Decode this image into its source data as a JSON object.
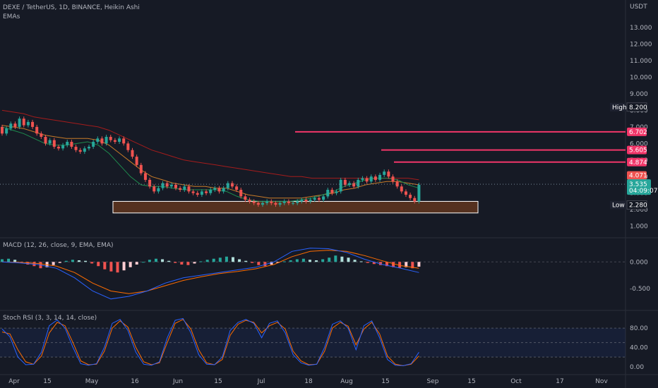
{
  "header": {
    "symbol_line": "DEXE / TetherUS, 1D, BINANCE, Heikin Ashi",
    "indicator": "EMAs"
  },
  "panels": {
    "macd_title": "MACD (12, 26, close, 9, EMA, EMA)",
    "stoch_title": "Stoch RSI (3, 3, 14, 14, close)"
  },
  "colors": {
    "up": "#26a69a",
    "down": "#ef5350",
    "hline": "#f23669",
    "ema_short": "#1e8c4e",
    "ema_mid": "#c77b28",
    "ema_long": "#a51c1c",
    "macd_line": "#2962ff",
    "signal_line": "#ff6d00",
    "stoch_k": "#2962ff",
    "stoch_d": "#ff6d00",
    "zone_fill": "#6b3a1e",
    "zone_stroke": "#ffffff"
  },
  "chart_data": [
    {
      "type": "candlestick",
      "title": "DEXE / TetherUS, 1D, BINANCE, Heikin Ashi",
      "currency": "USDT",
      "price_axis_ticks": [
        "13.000",
        "12.000",
        "11.000",
        "10.000",
        "9.000",
        "8.000",
        "7.000",
        "6.000",
        "5.000",
        "4.000",
        "3.000",
        "2.000",
        "1.000"
      ],
      "ylim": [
        0.6,
        14.5
      ],
      "time_axis_ticks": [
        "Apr",
        "15",
        "May",
        "16",
        "Jun",
        "15",
        "Jul",
        "18",
        "Aug",
        "15",
        "Sep",
        "15",
        "Oct",
        "17",
        "Nov"
      ],
      "candles": [
        [
          7.0,
          6.6
        ],
        [
          6.6,
          6.9
        ],
        [
          6.9,
          7.2
        ],
        [
          7.2,
          7.0
        ],
        [
          7.0,
          7.5
        ],
        [
          7.5,
          7.1
        ],
        [
          7.1,
          7.3
        ],
        [
          7.3,
          7.0
        ],
        [
          7.0,
          6.6
        ],
        [
          6.6,
          6.4
        ],
        [
          6.4,
          6.0
        ],
        [
          6.0,
          6.2
        ],
        [
          6.2,
          5.8
        ],
        [
          5.8,
          5.7
        ],
        [
          5.7,
          5.9
        ],
        [
          5.9,
          6.1
        ],
        [
          6.1,
          5.8
        ],
        [
          5.8,
          5.6
        ],
        [
          5.6,
          5.5
        ],
        [
          5.5,
          5.7
        ],
        [
          5.7,
          5.8
        ],
        [
          5.8,
          6.1
        ],
        [
          6.1,
          6.3
        ],
        [
          6.3,
          6.0
        ],
        [
          6.0,
          6.4
        ],
        [
          6.4,
          6.2
        ],
        [
          6.2,
          6.1
        ],
        [
          6.1,
          6.3
        ],
        [
          6.3,
          6.0
        ],
        [
          6.0,
          5.6
        ],
        [
          5.6,
          5.2
        ],
        [
          5.2,
          4.7
        ],
        [
          4.7,
          4.2
        ],
        [
          4.2,
          3.8
        ],
        [
          3.8,
          3.4
        ],
        [
          3.4,
          3.1
        ],
        [
          3.1,
          3.3
        ],
        [
          3.3,
          3.6
        ],
        [
          3.6,
          3.4
        ],
        [
          3.4,
          3.5
        ],
        [
          3.5,
          3.3
        ],
        [
          3.3,
          3.2
        ],
        [
          3.2,
          3.4
        ],
        [
          3.4,
          3.1
        ],
        [
          3.1,
          3.0
        ],
        [
          3.0,
          2.9
        ],
        [
          2.9,
          3.1
        ],
        [
          3.1,
          3.0
        ],
        [
          3.0,
          3.2
        ],
        [
          3.2,
          3.3
        ],
        [
          3.3,
          3.1
        ],
        [
          3.1,
          3.3
        ],
        [
          3.3,
          3.6
        ],
        [
          3.6,
          3.4
        ],
        [
          3.4,
          3.2
        ],
        [
          3.2,
          2.8
        ],
        [
          2.8,
          2.6
        ],
        [
          2.6,
          2.5
        ],
        [
          2.5,
          2.4
        ],
        [
          2.4,
          2.3
        ],
        [
          2.3,
          2.4
        ],
        [
          2.4,
          2.5
        ],
        [
          2.5,
          2.4
        ],
        [
          2.4,
          2.3
        ],
        [
          2.3,
          2.4
        ],
        [
          2.4,
          2.5
        ],
        [
          2.5,
          2.4
        ],
        [
          2.4,
          2.4
        ],
        [
          2.4,
          2.5
        ],
        [
          2.5,
          2.6
        ],
        [
          2.6,
          2.5
        ],
        [
          2.5,
          2.6
        ],
        [
          2.6,
          2.7
        ],
        [
          2.7,
          2.6
        ],
        [
          2.6,
          2.8
        ],
        [
          2.8,
          3.2
        ],
        [
          3.2,
          3.0
        ],
        [
          3.0,
          3.1
        ],
        [
          3.1,
          3.8
        ],
        [
          3.8,
          3.5
        ],
        [
          3.5,
          3.6
        ],
        [
          3.6,
          3.4
        ],
        [
          3.4,
          3.8
        ],
        [
          3.8,
          3.9
        ],
        [
          3.9,
          3.7
        ],
        [
          3.7,
          4.0
        ],
        [
          4.0,
          3.8
        ],
        [
          3.8,
          4.1
        ],
        [
          4.1,
          4.3
        ],
        [
          4.3,
          4.0
        ],
        [
          4.0,
          3.7
        ],
        [
          3.7,
          3.4
        ],
        [
          3.4,
          3.1
        ],
        [
          3.1,
          2.9
        ],
        [
          2.9,
          2.7
        ],
        [
          2.7,
          2.5
        ],
        [
          2.5,
          3.5
        ]
      ],
      "emas": {
        "short": [
          7.0,
          6.8,
          6.6,
          6.3,
          6.0,
          5.9,
          5.9,
          6.0,
          6.1,
          5.9,
          5.4,
          4.7,
          4.0,
          3.5,
          3.4,
          3.4,
          3.3,
          3.2,
          3.2,
          3.2,
          3.2,
          3.1,
          2.8,
          2.6,
          2.5,
          2.5,
          2.5,
          2.5,
          2.6,
          2.7,
          2.9,
          3.1,
          3.4,
          3.6,
          3.8,
          3.9,
          3.9,
          3.8,
          3.5,
          3.3
        ],
        "mid": [
          7.1,
          7.0,
          6.9,
          6.7,
          6.5,
          6.4,
          6.3,
          6.3,
          6.3,
          6.2,
          5.9,
          5.4,
          4.9,
          4.4,
          4.0,
          3.8,
          3.6,
          3.5,
          3.4,
          3.4,
          3.3,
          3.3,
          3.1,
          2.9,
          2.8,
          2.7,
          2.7,
          2.7,
          2.7,
          2.8,
          2.9,
          3.0,
          3.2,
          3.3,
          3.5,
          3.6,
          3.7,
          3.7,
          3.6,
          3.5
        ],
        "long": [
          8.0,
          7.9,
          7.8,
          7.6,
          7.5,
          7.4,
          7.3,
          7.2,
          7.1,
          7.0,
          6.8,
          6.5,
          6.2,
          5.9,
          5.6,
          5.4,
          5.2,
          5.0,
          4.9,
          4.8,
          4.7,
          4.6,
          4.5,
          4.4,
          4.3,
          4.2,
          4.1,
          4.0,
          4.0,
          3.9,
          3.9,
          3.9,
          3.9,
          3.9,
          3.9,
          3.9,
          3.9,
          3.9,
          3.9,
          3.8
        ]
      },
      "horizontal_levels": [
        6.702,
        5.605,
        4.874
      ],
      "support_zone": [
        1.8,
        2.5
      ],
      "price_tags": {
        "high_label": "High",
        "high": "8.200",
        "low_label": "Low",
        "low": "2.280",
        "level1": "6.702",
        "level2": "5.605",
        "level3": "4.874",
        "prev": "4.071",
        "last": "3.535",
        "countdown": "04:09:07"
      }
    },
    {
      "type": "macd",
      "title": "MACD (12, 26, close, 9, EMA, EMA)",
      "axis_ticks": [
        "0.000",
        "-0.500"
      ],
      "ylim": [
        -0.85,
        0.35
      ],
      "histogram": [
        0.05,
        0.06,
        0.04,
        -0.02,
        -0.05,
        -0.08,
        -0.12,
        -0.1,
        -0.06,
        -0.02,
        0.02,
        0.04,
        0.03,
        0.02,
        -0.03,
        -0.08,
        -0.14,
        -0.18,
        -0.2,
        -0.16,
        -0.1,
        -0.05,
        0.0,
        0.04,
        0.06,
        0.05,
        0.02,
        -0.02,
        -0.05,
        -0.06,
        -0.03,
        0.01,
        0.04,
        0.06,
        0.08,
        0.1,
        0.09,
        0.05,
        0.02,
        -0.02,
        -0.06,
        -0.08,
        -0.05,
        -0.02,
        0.01,
        0.03,
        0.05,
        0.06,
        0.04,
        0.03,
        0.05,
        0.08,
        0.12,
        0.1,
        0.08,
        0.04,
        0.01,
        -0.02,
        -0.04,
        -0.06,
        -0.08,
        -0.1,
        -0.11,
        -0.1,
        -0.12,
        -0.09
      ],
      "macd": [
        0.0,
        -0.02,
        -0.05,
        -0.12,
        -0.3,
        -0.55,
        -0.7,
        -0.65,
        -0.55,
        -0.4,
        -0.3,
        -0.25,
        -0.2,
        -0.15,
        -0.1,
        0.0,
        0.2,
        0.26,
        0.25,
        0.18,
        0.05,
        -0.05,
        -0.12,
        -0.2
      ],
      "signal": [
        0.0,
        -0.01,
        -0.03,
        -0.08,
        -0.2,
        -0.4,
        -0.55,
        -0.6,
        -0.55,
        -0.45,
        -0.35,
        -0.28,
        -0.22,
        -0.18,
        -0.13,
        -0.05,
        0.1,
        0.2,
        0.22,
        0.2,
        0.12,
        0.02,
        -0.07,
        -0.12
      ]
    },
    {
      "type": "stoch_rsi",
      "title": "Stoch RSI (3, 3, 14, 14, close)",
      "axis_ticks": [
        "80.00",
        "40.00",
        "0.00"
      ],
      "ylim": [
        -15,
        105
      ],
      "bands": [
        80,
        50,
        20
      ],
      "k": [
        78,
        62,
        20,
        4,
        5,
        30,
        85,
        97,
        80,
        40,
        6,
        3,
        6,
        40,
        90,
        98,
        75,
        30,
        5,
        3,
        10,
        60,
        96,
        100,
        70,
        25,
        5,
        4,
        20,
        75,
        92,
        98,
        90,
        60,
        90,
        95,
        70,
        25,
        8,
        3,
        5,
        40,
        88,
        95,
        80,
        35,
        85,
        95,
        60,
        15,
        3,
        2,
        6,
        30
      ],
      "d": [
        72,
        68,
        35,
        10,
        5,
        22,
        70,
        92,
        85,
        50,
        12,
        4,
        5,
        32,
        80,
        95,
        82,
        40,
        10,
        4,
        8,
        50,
        90,
        98,
        78,
        35,
        8,
        4,
        15,
        65,
        88,
        96,
        92,
        70,
        85,
        92,
        78,
        32,
        12,
        4,
        5,
        32,
        80,
        92,
        84,
        45,
        78,
        92,
        68,
        22,
        5,
        2,
        5,
        22
      ]
    }
  ]
}
